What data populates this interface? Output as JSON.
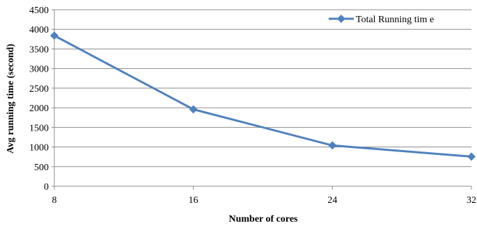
{
  "chart_data": {
    "type": "line",
    "title": "",
    "xlabel": "Number  of cores",
    "ylabel": "Avg running time (second)",
    "x": [
      8,
      16,
      24,
      32
    ],
    "xlim": [
      8,
      32
    ],
    "ylim": [
      0,
      4500
    ],
    "x_ticks": [
      8,
      16,
      24,
      32
    ],
    "y_ticks": [
      0,
      500,
      1000,
      1500,
      2000,
      2500,
      3000,
      3500,
      4000,
      4500
    ],
    "grid": "horizontal",
    "legend_position": "top-right",
    "series": [
      {
        "name": "Total Running tim e",
        "values": [
          3840,
          1960,
          1040,
          755
        ],
        "color": "#4f81bd",
        "marker": "diamond"
      }
    ]
  }
}
